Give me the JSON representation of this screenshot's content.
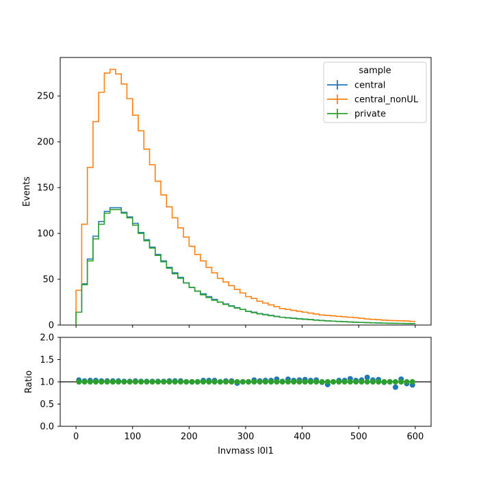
{
  "chart_data": [
    {
      "type": "step",
      "title": "",
      "xlabel": "",
      "ylabel": "Events",
      "xlim": [
        -28,
        628
      ],
      "ylim": [
        0,
        292
      ],
      "x_ticks": [
        0,
        100,
        200,
        300,
        400,
        500,
        600
      ],
      "y_ticks": [
        0,
        50,
        100,
        150,
        200,
        250
      ],
      "bin_edges": [
        0,
        10,
        20,
        30,
        40,
        50,
        60,
        70,
        80,
        90,
        100,
        110,
        120,
        130,
        140,
        150,
        160,
        170,
        180,
        190,
        200,
        210,
        220,
        230,
        240,
        250,
        260,
        270,
        280,
        290,
        300,
        310,
        320,
        330,
        340,
        350,
        360,
        370,
        380,
        390,
        400,
        410,
        420,
        430,
        440,
        450,
        460,
        470,
        480,
        490,
        500,
        510,
        520,
        530,
        540,
        550,
        560,
        570,
        580,
        590,
        600
      ],
      "legend": {
        "title": "sample",
        "position": "top-right"
      },
      "series": [
        {
          "name": "central",
          "color": "#1f77b4",
          "values": [
            14,
            45,
            72,
            97,
            113,
            124,
            128,
            128,
            123,
            118,
            111,
            101,
            93,
            85,
            77,
            70,
            63,
            57,
            52,
            46,
            41,
            37,
            34,
            31,
            28,
            25,
            23,
            21,
            19,
            17,
            15,
            14,
            12.5,
            11.5,
            10.5,
            9.5,
            8.5,
            8,
            7.5,
            7,
            6.5,
            6,
            5.5,
            5,
            4.6,
            4.3,
            4,
            3.7,
            3.4,
            3.1,
            2.9,
            2.7,
            2.5,
            2.3,
            2.1,
            1.9,
            1.8,
            1.7,
            1.6,
            1.5
          ]
        },
        {
          "name": "central_nonUL",
          "color": "#ff7f0e",
          "values": [
            38,
            110,
            172,
            222,
            254,
            275,
            279,
            274,
            263,
            247,
            229,
            212,
            192,
            175,
            157,
            142,
            129,
            117,
            106,
            96,
            86,
            77,
            70,
            63,
            57,
            51,
            47,
            43,
            39,
            35,
            31,
            29,
            26,
            24,
            22,
            20,
            18,
            17,
            16,
            15,
            14,
            13,
            12,
            11,
            10.5,
            10,
            9.5,
            9,
            8.5,
            8,
            7.3,
            6.7,
            6.2,
            5.8,
            5.4,
            5,
            4.8,
            4.6,
            4.4,
            4
          ]
        },
        {
          "name": "private",
          "color": "#2ca02c",
          "values": [
            14,
            44,
            70,
            94,
            110,
            122,
            126,
            126,
            122,
            117,
            109,
            100,
            92,
            84,
            76,
            69,
            62,
            56,
            51,
            46,
            41,
            37,
            33,
            30,
            27,
            25,
            22.5,
            20.5,
            18.5,
            17,
            15,
            13.5,
            12.2,
            11.2,
            10.2,
            9.2,
            8.4,
            7.8,
            7.2,
            6.7,
            6.2,
            5.8,
            5.3,
            4.9,
            4.5,
            4.2,
            3.9,
            3.6,
            3.3,
            3,
            2.8,
            2.6,
            2.4,
            2.2,
            2,
            1.9,
            1.8,
            1.7,
            1.6,
            1.5
          ]
        }
      ]
    },
    {
      "type": "scatter",
      "title": "",
      "xlabel": "Invmass l0l1",
      "ylabel": "Ratio",
      "xlim": [
        -28,
        628
      ],
      "ylim": [
        0,
        2
      ],
      "x_ticks": [
        0,
        100,
        200,
        300,
        400,
        500,
        600
      ],
      "y_ticks": [
        "0.0",
        "0.5",
        "1.0",
        "1.5",
        "2.0"
      ],
      "reference_line": 1.0,
      "x": [
        5,
        15,
        25,
        35,
        45,
        55,
        65,
        75,
        85,
        95,
        105,
        115,
        125,
        135,
        145,
        155,
        165,
        175,
        185,
        195,
        205,
        215,
        225,
        235,
        245,
        255,
        265,
        275,
        285,
        295,
        305,
        315,
        325,
        335,
        345,
        355,
        365,
        375,
        385,
        395,
        405,
        415,
        425,
        435,
        445,
        455,
        465,
        475,
        485,
        495,
        505,
        515,
        525,
        535,
        545,
        555,
        565,
        575,
        585,
        595
      ],
      "series": [
        {
          "name": "central",
          "color": "#1f77b4",
          "values": [
            1.04,
            1.02,
            1.03,
            1.03,
            1.02,
            1.02,
            1.02,
            1.02,
            1.01,
            1.01,
            1.02,
            1.01,
            1.01,
            1.01,
            1.01,
            1.01,
            1.02,
            1.02,
            1.02,
            1.0,
            1.0,
            1.0,
            1.03,
            1.03,
            1.03,
            1.0,
            1.02,
            1.02,
            0.97,
            1.0,
            1.0,
            1.04,
            1.02,
            1.03,
            1.03,
            1.06,
            1.01,
            1.06,
            1.03,
            1.04,
            1.05,
            1.03,
            1.04,
            0.99,
            0.94,
            1.0,
            1.03,
            1.03,
            1.07,
            1.03,
            1.04,
            1.1,
            1.04,
            1.05,
            0.99,
            1.0,
            0.88,
            1.06,
            0.96,
            0.93
          ]
        },
        {
          "name": "private",
          "color": "#2ca02c",
          "values": [
            1,
            1,
            1,
            1,
            1,
            1,
            1,
            1,
            1,
            1,
            1,
            1,
            1,
            1,
            1,
            1,
            1,
            1,
            1,
            1,
            1,
            1,
            1,
            1,
            1,
            1,
            1,
            1,
            1,
            1,
            1,
            1,
            1,
            1,
            1,
            1,
            1,
            1,
            1,
            1,
            1,
            1,
            1,
            1,
            1,
            1,
            1,
            1,
            1,
            1,
            1,
            1,
            1,
            1,
            1,
            1,
            1,
            1,
            1,
            1
          ]
        }
      ]
    }
  ]
}
